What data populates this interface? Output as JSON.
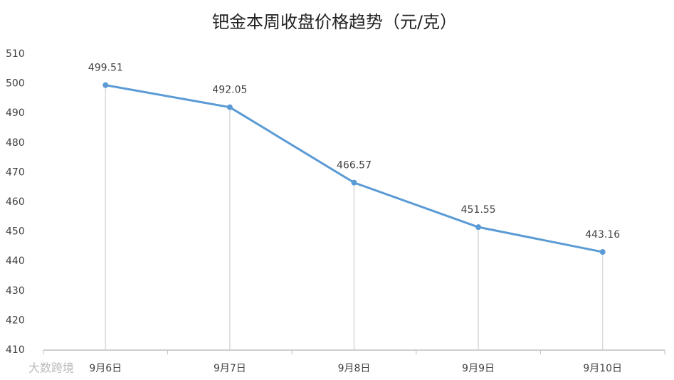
{
  "chart_data": {
    "type": "line",
    "title": "钯金本周收盘价格趋势（元/克）",
    "categories": [
      "9月6日",
      "9月7日",
      "9月8日",
      "9月9日",
      "9月10日"
    ],
    "values": [
      499.51,
      492.05,
      466.57,
      451.55,
      443.16
    ],
    "color": "#5b9bd5",
    "ylim": [
      410,
      510
    ],
    "yticks": [
      410,
      420,
      430,
      440,
      450,
      460,
      470,
      480,
      490,
      500,
      510
    ],
    "grid": false,
    "drop_lines": true
  },
  "watermark": "大数跨境"
}
